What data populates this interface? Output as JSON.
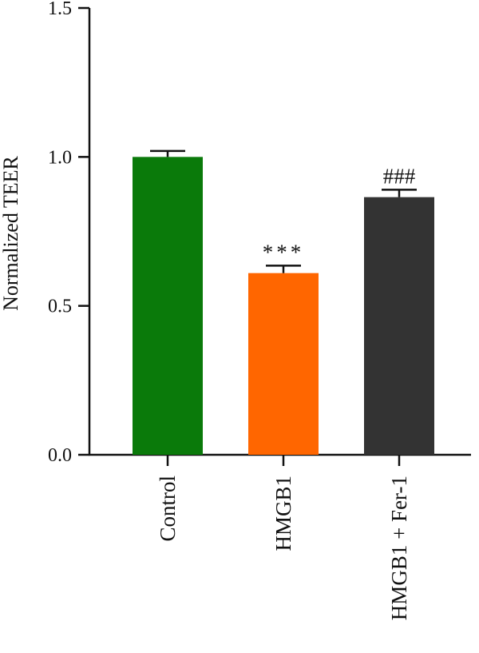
{
  "chart_data": {
    "type": "bar",
    "title": "",
    "xlabel": "",
    "ylabel": "Normalized TEER",
    "ylim": [
      0,
      1.5
    ],
    "yticks": [
      "0.0",
      "0.5",
      "1.0",
      "1.5"
    ],
    "categories": [
      "Control",
      "HMGB1",
      "HMGB1 + Fer-1"
    ],
    "values": [
      1.0,
      0.61,
      0.865
    ],
    "errors": [
      0.02,
      0.025,
      0.025
    ],
    "colors": [
      "#0a7a0a",
      "#ff6600",
      "#333333"
    ],
    "annotations": [
      "",
      "***",
      "###"
    ],
    "grid": false
  }
}
